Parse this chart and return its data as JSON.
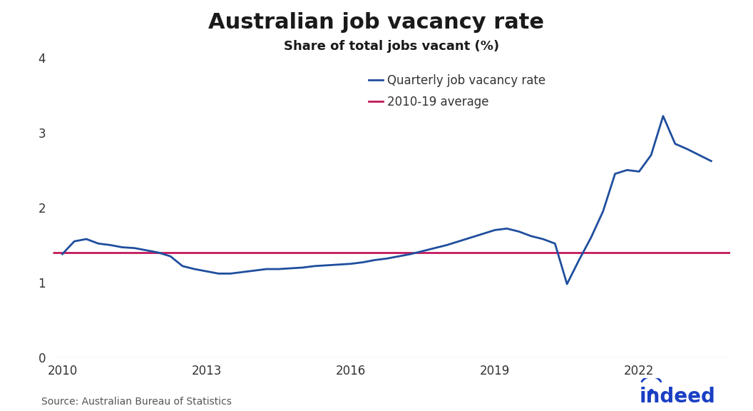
{
  "title": "Australian job vacancy rate",
  "subtitle": "Share of total jobs vacant (%)",
  "source": "Source: Australian Bureau of Statistics",
  "line_color": "#1f4e9e",
  "avg_color": "#c2185b",
  "avg_value": 1.4,
  "ylim": [
    0,
    4
  ],
  "yticks": [
    0,
    1,
    2,
    3,
    4
  ],
  "background_color": "#ffffff",
  "legend_labels": [
    "Quarterly job vacancy rate",
    "2010-19 average"
  ],
  "text_color": "#333333",
  "quarterly_data": {
    "dates": [
      2010.0,
      2010.25,
      2010.5,
      2010.75,
      2011.0,
      2011.25,
      2011.5,
      2011.75,
      2012.0,
      2012.25,
      2012.5,
      2012.75,
      2013.0,
      2013.25,
      2013.5,
      2013.75,
      2014.0,
      2014.25,
      2014.5,
      2014.75,
      2015.0,
      2015.25,
      2015.5,
      2015.75,
      2016.0,
      2016.25,
      2016.5,
      2016.75,
      2017.0,
      2017.25,
      2017.5,
      2017.75,
      2018.0,
      2018.25,
      2018.5,
      2018.75,
      2019.0,
      2019.25,
      2019.5,
      2019.75,
      2020.0,
      2020.25,
      2020.5,
      2020.75,
      2021.0,
      2021.25,
      2021.5,
      2021.75,
      2022.0,
      2022.25,
      2022.5,
      2022.75,
      2023.0,
      2023.25,
      2023.5
    ],
    "values": [
      1.38,
      1.55,
      1.58,
      1.52,
      1.5,
      1.47,
      1.46,
      1.43,
      1.4,
      1.35,
      1.22,
      1.18,
      1.15,
      1.12,
      1.12,
      1.14,
      1.16,
      1.18,
      1.18,
      1.19,
      1.2,
      1.22,
      1.23,
      1.24,
      1.25,
      1.27,
      1.3,
      1.32,
      1.35,
      1.38,
      1.42,
      1.46,
      1.5,
      1.55,
      1.6,
      1.65,
      1.7,
      1.72,
      1.68,
      1.62,
      1.58,
      1.52,
      0.98,
      1.3,
      1.6,
      1.95,
      2.45,
      2.5,
      2.48,
      2.7,
      3.22,
      2.85,
      2.78,
      2.7,
      2.62
    ]
  },
  "xticks": [
    2010,
    2013,
    2016,
    2019,
    2022
  ],
  "xlim": [
    2009.8,
    2023.9
  ]
}
